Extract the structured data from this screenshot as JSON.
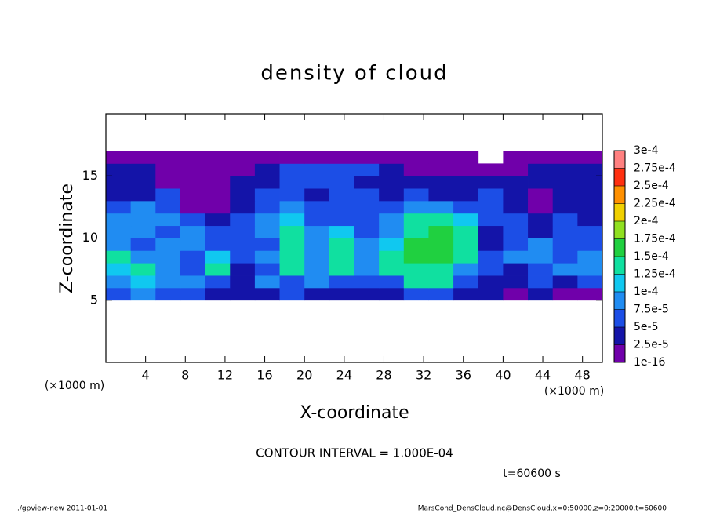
{
  "chart_data": {
    "type": "heatmap",
    "title": "density of cloud",
    "x_label": "X-coordinate",
    "y_label": "Z-coordinate",
    "x_unit_label": "(×1000 m)",
    "y_unit_label": "(×1000 m)",
    "xlim": [
      0,
      50
    ],
    "xticks": [
      4,
      8,
      12,
      16,
      20,
      24,
      28,
      32,
      36,
      40,
      44,
      48
    ],
    "ylim": [
      0,
      20
    ],
    "yticks": [
      5,
      10,
      15
    ],
    "x_edges": [
      0,
      2.5,
      5,
      7.5,
      10,
      12.5,
      15,
      17.5,
      20,
      22.5,
      25,
      27.5,
      30,
      32.5,
      35,
      37.5,
      40,
      42.5,
      45,
      47.5,
      50
    ],
    "y_edges": [
      5,
      6,
      7,
      8,
      9,
      10,
      11,
      12,
      13,
      14,
      15,
      16,
      17
    ],
    "values": [
      [
        6e-05,
        8.5e-05,
        6e-05,
        6e-05,
        3.5e-05,
        3.5e-05,
        3.5e-05,
        6e-05,
        3.5e-05,
        3.5e-05,
        3.5e-05,
        3.5e-05,
        6e-05,
        6e-05,
        3.5e-05,
        3.5e-05,
        1e-05,
        3.5e-05,
        1e-05,
        1e-05
      ],
      [
        8.5e-05,
        0.00011,
        8.5e-05,
        8.5e-05,
        6e-05,
        3.5e-05,
        8.5e-05,
        6e-05,
        8.5e-05,
        6e-05,
        6e-05,
        6e-05,
        0.00014,
        0.00014,
        6e-05,
        3.5e-05,
        3.5e-05,
        6e-05,
        3.5e-05,
        6e-05
      ],
      [
        0.00011,
        0.00014,
        8.5e-05,
        6e-05,
        0.00014,
        3.5e-05,
        6e-05,
        0.00014,
        8.5e-05,
        0.00014,
        8.5e-05,
        0.00014,
        0.00014,
        0.00014,
        8.5e-05,
        6e-05,
        3.5e-05,
        6e-05,
        8.5e-05,
        8.5e-05
      ],
      [
        0.00014,
        8.5e-05,
        8.5e-05,
        6e-05,
        0.00011,
        6e-05,
        8.5e-05,
        0.00014,
        8.5e-05,
        0.00014,
        8.5e-05,
        0.00014,
        0.00016,
        0.00016,
        0.00014,
        6e-05,
        8.5e-05,
        8.5e-05,
        6e-05,
        8.5e-05
      ],
      [
        8.5e-05,
        6e-05,
        8.5e-05,
        8.5e-05,
        6e-05,
        6e-05,
        6e-05,
        0.00014,
        8.5e-05,
        0.00014,
        8.5e-05,
        0.00011,
        0.00016,
        0.00016,
        0.00014,
        3.5e-05,
        6e-05,
        8.5e-05,
        6e-05,
        6e-05
      ],
      [
        8.5e-05,
        8.5e-05,
        6e-05,
        8.5e-05,
        6e-05,
        6e-05,
        8.5e-05,
        0.00014,
        8.5e-05,
        0.00011,
        6e-05,
        8.5e-05,
        0.00014,
        0.00016,
        0.00014,
        3.5e-05,
        6e-05,
        3.5e-05,
        6e-05,
        6e-05
      ],
      [
        8.5e-05,
        8.5e-05,
        8.5e-05,
        6e-05,
        3.5e-05,
        6e-05,
        8.5e-05,
        0.00011,
        6e-05,
        6e-05,
        6e-05,
        8.5e-05,
        0.00014,
        0.00014,
        0.00011,
        6e-05,
        6e-05,
        3.5e-05,
        6e-05,
        3.5e-05
      ],
      [
        6e-05,
        8.5e-05,
        6e-05,
        1e-05,
        1e-05,
        3.5e-05,
        6e-05,
        8.5e-05,
        6e-05,
        6e-05,
        6e-05,
        6e-05,
        8.5e-05,
        8.5e-05,
        6e-05,
        6e-05,
        3.5e-05,
        1e-05,
        3.5e-05,
        3.5e-05
      ],
      [
        3.5e-05,
        3.5e-05,
        6e-05,
        1e-05,
        1e-05,
        3.5e-05,
        6e-05,
        6e-05,
        3.5e-05,
        6e-05,
        6e-05,
        3.5e-05,
        6e-05,
        3.5e-05,
        3.5e-05,
        6e-05,
        3.5e-05,
        1e-05,
        3.5e-05,
        3.5e-05
      ],
      [
        3.5e-05,
        3.5e-05,
        1e-05,
        1e-05,
        1e-05,
        3.5e-05,
        3.5e-05,
        6e-05,
        6e-05,
        6e-05,
        3.5e-05,
        3.5e-05,
        3.5e-05,
        3.5e-05,
        3.5e-05,
        3.5e-05,
        3.5e-05,
        3.5e-05,
        3.5e-05,
        3.5e-05
      ],
      [
        3.5e-05,
        3.5e-05,
        1e-05,
        1e-05,
        1e-05,
        1e-05,
        3.5e-05,
        6e-05,
        6e-05,
        6e-05,
        6e-05,
        3.5e-05,
        1e-05,
        1e-05,
        1e-05,
        1e-05,
        1e-05,
        3.5e-05,
        3.5e-05,
        3.5e-05
      ],
      [
        1e-05,
        1e-05,
        1e-05,
        1e-05,
        1e-05,
        1e-05,
        1e-05,
        1e-05,
        1e-05,
        1e-05,
        1e-05,
        1e-05,
        1e-05,
        1e-05,
        1e-05,
        null,
        1e-05,
        1e-05,
        1e-05,
        1e-05
      ]
    ],
    "colorbar": {
      "ticks": [
        1e-16,
        {
          "value": 2.5e-05,
          "label": "2.5e-5"
        },
        {
          "value": 5e-05,
          "label": "5e-5"
        },
        {
          "value": 7.5e-05,
          "label": "7.5e-5"
        },
        {
          "value": 0.0001,
          "label": "1e-4"
        },
        {
          "value": 0.000125,
          "label": "1.25e-4"
        },
        {
          "value": 0.00015,
          "label": "1.5e-4"
        },
        {
          "value": 0.000175,
          "label": "1.75e-4"
        },
        {
          "value": 0.0002,
          "label": "2e-4"
        },
        {
          "value": 0.000225,
          "label": "2.25e-4"
        },
        {
          "value": 0.00025,
          "label": "2.5e-4"
        },
        {
          "value": 0.000275,
          "label": "2.75e-4"
        },
        {
          "value": 0.0003,
          "label": "3e-4"
        }
      ],
      "colors": [
        "#7000aa",
        "#1414a8",
        "#1c4ee6",
        "#208cf2",
        "#10c8f0",
        "#10e0a0",
        "#20d040",
        "#90e020",
        "#f0d000",
        "#ff9000",
        "#ff3010",
        "#ff8080"
      ]
    },
    "contour_note": "CONTOUR INTERVAL = 1.000E-04",
    "time_note": "t=60600 s"
  },
  "footer": {
    "left": "./gpview-new   2011-01-01",
    "right": "MarsCond_DensCloud.nc@DensCloud,x=0:50000,z=0:20000,t=60600"
  }
}
